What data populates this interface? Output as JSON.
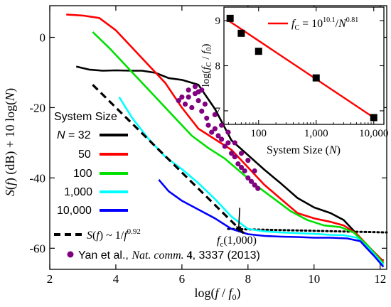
{
  "chart_data": {
    "type": "line",
    "xlabel_main": "log(",
    "xlabel_f": "f",
    "xlabel_slash": " / ",
    "xlabel_f0": "f",
    "xlabel_f0_sub": "0",
    "xlabel_close": ")",
    "ylabel_s": "S",
    "ylabel_f": "f",
    "ylabel_rest": ") (dB) + 10 log(",
    "ylabel_n": "N",
    "ylabel_close": ")",
    "xlim": [
      2,
      12.2
    ],
    "ylim": [
      -66,
      9
    ],
    "xticks": [
      2,
      4,
      6,
      8,
      10,
      12
    ],
    "yticks": [
      0,
      -20,
      -40,
      -60
    ],
    "legend_title": "System Size",
    "legend_n_prefix": "N",
    "legend_n_eq": " = 32",
    "series": [
      {
        "name": "32",
        "color": "#000000",
        "points": [
          [
            2.8,
            -8.3
          ],
          [
            3.2,
            -9.2
          ],
          [
            3.6,
            -9.5
          ],
          [
            4.0,
            -9.4
          ],
          [
            4.5,
            -9.5
          ],
          [
            4.8,
            -9.5
          ],
          [
            5.2,
            -10.1
          ],
          [
            5.6,
            -11.6
          ],
          [
            6.0,
            -12.1
          ],
          [
            6.5,
            -13.5
          ],
          [
            7.0,
            -20.4
          ],
          [
            7.5,
            -29.3
          ],
          [
            8.0,
            -33.5
          ],
          [
            8.5,
            -37.7
          ],
          [
            9.0,
            -41.6
          ],
          [
            9.5,
            -45.7
          ],
          [
            10.0,
            -48.4
          ],
          [
            10.5,
            -50.0
          ],
          [
            10.9,
            -52.0
          ],
          [
            11.2,
            -55.0
          ],
          [
            11.5,
            -59.0
          ],
          [
            11.8,
            -62.0
          ],
          [
            12.1,
            -63.5
          ]
        ]
      },
      {
        "name": "50",
        "color": "#ff0000",
        "points": [
          [
            2.5,
            6.5
          ],
          [
            3.0,
            6.2
          ],
          [
            3.5,
            5.5
          ],
          [
            4.0,
            2.0
          ],
          [
            4.5,
            -3.0
          ],
          [
            5.0,
            -8.0
          ],
          [
            5.5,
            -13.0
          ],
          [
            6.0,
            -20.0
          ],
          [
            6.5,
            -26.0
          ],
          [
            7.0,
            -29.0
          ],
          [
            7.5,
            -32.0
          ],
          [
            8.0,
            -37.0
          ],
          [
            8.5,
            -42.0
          ],
          [
            9.0,
            -46.0
          ],
          [
            9.5,
            -50.0
          ],
          [
            10.0,
            -51.5
          ],
          [
            10.5,
            -52.5
          ],
          [
            10.9,
            -53.5
          ],
          [
            11.3,
            -56.0
          ],
          [
            11.7,
            -60.0
          ],
          [
            12.1,
            -63.8
          ]
        ]
      },
      {
        "name": "100",
        "color": "#00e000",
        "points": [
          [
            3.3,
            1.5
          ],
          [
            3.8,
            -3.0
          ],
          [
            4.3,
            -8.0
          ],
          [
            4.8,
            -13.0
          ],
          [
            5.3,
            -18.0
          ],
          [
            5.8,
            -23.0
          ],
          [
            6.3,
            -28.0
          ],
          [
            6.8,
            -31.5
          ],
          [
            7.3,
            -34.5
          ],
          [
            7.8,
            -38.5
          ],
          [
            8.3,
            -42.5
          ],
          [
            8.8,
            -46.0
          ],
          [
            9.3,
            -49.5
          ],
          [
            9.8,
            -52.0
          ],
          [
            10.3,
            -53.5
          ],
          [
            10.8,
            -54.0
          ],
          [
            11.2,
            -55.5
          ],
          [
            11.6,
            -59.0
          ],
          [
            12.1,
            -64.3
          ]
        ]
      },
      {
        "name": "1,000",
        "color": "#00ffff",
        "points": [
          [
            4.1,
            -17.0
          ],
          [
            4.5,
            -23.0
          ],
          [
            5.0,
            -29.0
          ],
          [
            5.5,
            -34.0
          ],
          [
            6.0,
            -37.5
          ],
          [
            6.5,
            -41.5
          ],
          [
            7.0,
            -46.0
          ],
          [
            7.5,
            -51.0
          ],
          [
            8.0,
            -54.5
          ],
          [
            8.5,
            -55.2
          ],
          [
            9.0,
            -55.5
          ],
          [
            9.5,
            -55.7
          ],
          [
            10.0,
            -55.9
          ],
          [
            10.5,
            -56.2
          ],
          [
            10.9,
            -56.3
          ],
          [
            11.3,
            -57.0
          ],
          [
            11.7,
            -60.5
          ],
          [
            12.1,
            -64.8
          ]
        ]
      },
      {
        "name": "10,000",
        "color": "#0000ff",
        "points": [
          [
            5.3,
            -40.5
          ],
          [
            5.6,
            -43.8
          ],
          [
            6.0,
            -46.5
          ],
          [
            6.5,
            -49.0
          ],
          [
            7.0,
            -51.5
          ],
          [
            7.5,
            -54.5
          ],
          [
            8.0,
            -56.0
          ],
          [
            8.5,
            -56.5
          ],
          [
            9.0,
            -56.7
          ],
          [
            9.5,
            -56.8
          ],
          [
            10.0,
            -57.0
          ],
          [
            10.5,
            -57.0
          ],
          [
            11.0,
            -57.2
          ],
          [
            11.4,
            -58.0
          ],
          [
            11.8,
            -62.0
          ],
          [
            12.1,
            -65.3
          ]
        ]
      }
    ],
    "fit_line": {
      "label_prefix": "S(",
      "label_f": "f",
      "label_mid": ") ~ 1/",
      "label_f2": "f",
      "label_exp": "0.92",
      "points": [
        [
          3.3,
          -13.5
        ],
        [
          7.9,
          -56.0
        ]
      ]
    },
    "floor_line": {
      "points": [
        [
          7.4,
          -54.5
        ],
        [
          12.2,
          -55.5
        ]
      ]
    },
    "scatter": {
      "color": "#800080",
      "label_prefix": "Yan et al., ",
      "label_journal": "Nat. comm.",
      "label_vol": " 4",
      "label_rest": ", 3337 (2013)",
      "points": [
        [
          5.9,
          -18
        ],
        [
          6.0,
          -17
        ],
        [
          6.1,
          -19
        ],
        [
          6.2,
          -17
        ],
        [
          6.3,
          -20
        ],
        [
          6.4,
          -16
        ],
        [
          6.5,
          -18
        ],
        [
          6.6,
          -21
        ],
        [
          6.7,
          -19
        ],
        [
          6.75,
          -23
        ],
        [
          6.8,
          -25
        ],
        [
          6.9,
          -27
        ],
        [
          7.0,
          -26
        ],
        [
          7.1,
          -28
        ],
        [
          7.2,
          -29
        ],
        [
          7.3,
          -31
        ],
        [
          7.4,
          -30
        ],
        [
          7.5,
          -33
        ],
        [
          7.6,
          -34
        ],
        [
          7.7,
          -36
        ],
        [
          7.8,
          -37
        ],
        [
          7.9,
          -38
        ],
        [
          8.0,
          -40
        ],
        [
          8.1,
          -41
        ],
        [
          8.2,
          -42
        ],
        [
          8.3,
          -43
        ],
        [
          6.2,
          -15
        ],
        [
          6.4,
          -14
        ],
        [
          6.5,
          -15.5
        ],
        [
          6.6,
          -15
        ],
        [
          7.0,
          -22
        ],
        [
          7.2,
          -25
        ],
        [
          7.4,
          -27
        ],
        [
          7.6,
          -30
        ],
        [
          7.8,
          -33
        ],
        [
          8.0,
          -35
        ],
        [
          8.2,
          -38
        ]
      ]
    },
    "annotation": {
      "label_f": "f",
      "label_sub": "c",
      "label_rest": "(1,000)",
      "arrow_from": [
        7.75,
        -48.5
      ],
      "arrow_to": [
        7.72,
        -55.0
      ]
    },
    "inset": {
      "type": "scatter",
      "xlabel_prefix": "System Size (",
      "xlabel_n": "N",
      "xlabel_close": ")",
      "ylabel_prefix": "log(",
      "ylabel_f1": "f",
      "ylabel_sub1": "C",
      "ylabel_mid": " / ",
      "ylabel_f2": "f",
      "ylabel_sub2": "0",
      "ylabel_close": ")",
      "xscale": "log",
      "xlim": [
        25,
        15000
      ],
      "ylim": [
        6.7,
        9.3
      ],
      "xticks": [
        100,
        1000,
        10000
      ],
      "xtick_labels": [
        "100",
        "1,000",
        "10,000"
      ],
      "yticks": [
        7,
        8,
        9
      ],
      "points": [
        [
          32,
          9.05
        ],
        [
          50,
          8.72
        ],
        [
          100,
          8.32
        ],
        [
          1000,
          7.73
        ],
        [
          10000,
          6.85
        ]
      ],
      "fit": {
        "color": "#ff0000",
        "label_f": "f",
        "label_sub": "C",
        "label_eq": " = 10",
        "label_exp1": "10.1",
        "label_div": "/",
        "label_n": "N",
        "label_exp2": "0.81",
        "points": [
          [
            30,
            9.0
          ],
          [
            10000,
            6.85
          ]
        ]
      }
    }
  }
}
